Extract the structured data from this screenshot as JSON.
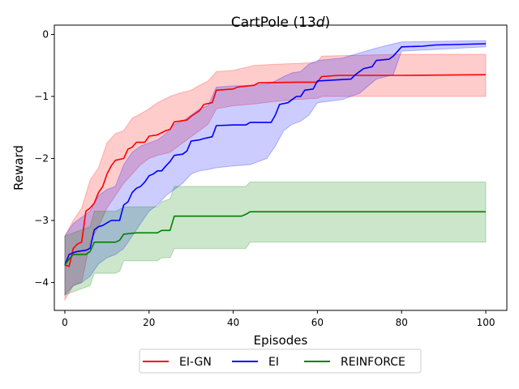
{
  "chart_data": {
    "type": "line",
    "title": "CartPole",
    "title_suffix": "13",
    "title_italic_part": "d",
    "title_close": ")",
    "title_open": " (",
    "xlabel": "Episodes",
    "ylabel": "Reward",
    "xlim": [
      -2.5,
      105
    ],
    "ylim": [
      -4.45,
      0.15
    ],
    "xticks": [
      0,
      20,
      40,
      60,
      80,
      100
    ],
    "yticks": [
      0,
      -1,
      -2,
      -3,
      -4
    ],
    "ytick_labels": [
      "0",
      "−1",
      "−2",
      "−3",
      "−4"
    ],
    "legend_position": "bottom-center",
    "series": [
      {
        "name": "EI-GN",
        "color": "#ff0000",
        "fill": "#ff0000",
        "mean": [
          [
            0,
            -3.72
          ],
          [
            1,
            -3.74
          ],
          [
            2,
            -3.45
          ],
          [
            3,
            -3.38
          ],
          [
            4,
            -3.35
          ],
          [
            5,
            -2.85
          ],
          [
            6,
            -2.8
          ],
          [
            7,
            -2.72
          ],
          [
            8,
            -2.55
          ],
          [
            9,
            -2.45
          ],
          [
            10,
            -2.25
          ],
          [
            11,
            -2.12
          ],
          [
            12,
            -2.03
          ],
          [
            14,
            -2.0
          ],
          [
            15,
            -1.85
          ],
          [
            16,
            -1.82
          ],
          [
            17,
            -1.74
          ],
          [
            19,
            -1.74
          ],
          [
            20,
            -1.64
          ],
          [
            22,
            -1.62
          ],
          [
            24,
            -1.55
          ],
          [
            25,
            -1.53
          ],
          [
            26,
            -1.41
          ],
          [
            29,
            -1.38
          ],
          [
            30,
            -1.32
          ],
          [
            32,
            -1.23
          ],
          [
            33,
            -1.13
          ],
          [
            35,
            -1.1
          ],
          [
            36,
            -0.9
          ],
          [
            40,
            -0.88
          ],
          [
            41,
            -0.85
          ],
          [
            45,
            -0.82
          ],
          [
            46,
            -0.78
          ],
          [
            55,
            -0.77
          ],
          [
            60,
            -0.77
          ],
          [
            61,
            -0.68
          ],
          [
            65,
            -0.66
          ],
          [
            80,
            -0.66
          ],
          [
            100,
            -0.65
          ]
        ],
        "lower": [
          [
            0,
            -4.28
          ],
          [
            2,
            -4.05
          ],
          [
            4,
            -4.0
          ],
          [
            6,
            -3.35
          ],
          [
            8,
            -3.1
          ],
          [
            10,
            -2.8
          ],
          [
            12,
            -2.6
          ],
          [
            14,
            -2.4
          ],
          [
            16,
            -2.25
          ],
          [
            18,
            -2.1
          ],
          [
            20,
            -2.0
          ],
          [
            22,
            -1.95
          ],
          [
            25,
            -1.9
          ],
          [
            27,
            -1.8
          ],
          [
            30,
            -1.65
          ],
          [
            32,
            -1.55
          ],
          [
            34,
            -1.45
          ],
          [
            36,
            -1.2
          ],
          [
            40,
            -1.15
          ],
          [
            45,
            -1.12
          ],
          [
            50,
            -1.08
          ],
          [
            55,
            -1.05
          ],
          [
            60,
            -1.03
          ],
          [
            61,
            -1.0
          ],
          [
            80,
            -1.0
          ],
          [
            100,
            -1.0
          ]
        ],
        "upper": [
          [
            0,
            -3.25
          ],
          [
            2,
            -3.0
          ],
          [
            4,
            -2.8
          ],
          [
            6,
            -2.35
          ],
          [
            8,
            -2.15
          ],
          [
            10,
            -1.75
          ],
          [
            12,
            -1.6
          ],
          [
            14,
            -1.55
          ],
          [
            16,
            -1.35
          ],
          [
            18,
            -1.28
          ],
          [
            20,
            -1.2
          ],
          [
            22,
            -1.1
          ],
          [
            25,
            -1.0
          ],
          [
            27,
            -0.95
          ],
          [
            30,
            -0.9
          ],
          [
            32,
            -0.82
          ],
          [
            34,
            -0.75
          ],
          [
            36,
            -0.6
          ],
          [
            40,
            -0.58
          ],
          [
            45,
            -0.5
          ],
          [
            50,
            -0.48
          ],
          [
            55,
            -0.47
          ],
          [
            60,
            -0.45
          ],
          [
            61,
            -0.35
          ],
          [
            80,
            -0.32
          ],
          [
            100,
            -0.32
          ]
        ]
      },
      {
        "name": "EI",
        "color": "#0000ff",
        "fill": "#0000ff",
        "mean": [
          [
            0,
            -3.72
          ],
          [
            1,
            -3.55
          ],
          [
            2,
            -3.52
          ],
          [
            3,
            -3.5
          ],
          [
            5,
            -3.48
          ],
          [
            6,
            -3.45
          ],
          [
            7,
            -3.15
          ],
          [
            8,
            -3.1
          ],
          [
            9,
            -3.08
          ],
          [
            10,
            -3.04
          ],
          [
            11,
            -3.0
          ],
          [
            13,
            -3.0
          ],
          [
            14,
            -2.75
          ],
          [
            15,
            -2.7
          ],
          [
            16,
            -2.55
          ],
          [
            17,
            -2.48
          ],
          [
            18,
            -2.45
          ],
          [
            19,
            -2.38
          ],
          [
            20,
            -2.28
          ],
          [
            21,
            -2.25
          ],
          [
            22,
            -2.2
          ],
          [
            23,
            -2.2
          ],
          [
            24,
            -2.12
          ],
          [
            25,
            -2.05
          ],
          [
            26,
            -1.95
          ],
          [
            28,
            -1.93
          ],
          [
            29,
            -1.88
          ],
          [
            30,
            -1.72
          ],
          [
            32,
            -1.7
          ],
          [
            33,
            -1.68
          ],
          [
            35,
            -1.65
          ],
          [
            36,
            -1.47
          ],
          [
            40,
            -1.46
          ],
          [
            43,
            -1.46
          ],
          [
            44,
            -1.42
          ],
          [
            49,
            -1.42
          ],
          [
            50,
            -1.3
          ],
          [
            51,
            -1.13
          ],
          [
            53,
            -1.1
          ],
          [
            54,
            -1.05
          ],
          [
            55,
            -1.0
          ],
          [
            56,
            -1.0
          ],
          [
            57,
            -0.9
          ],
          [
            59,
            -0.88
          ],
          [
            60,
            -0.75
          ],
          [
            68,
            -0.72
          ],
          [
            69,
            -0.65
          ],
          [
            71,
            -0.55
          ],
          [
            73,
            -0.52
          ],
          [
            74,
            -0.42
          ],
          [
            77,
            -0.4
          ],
          [
            78,
            -0.35
          ],
          [
            80,
            -0.2
          ],
          [
            85,
            -0.19
          ],
          [
            88,
            -0.17
          ],
          [
            100,
            -0.15
          ]
        ],
        "lower": [
          [
            0,
            -4.2
          ],
          [
            2,
            -4.05
          ],
          [
            4,
            -4.0
          ],
          [
            6,
            -3.9
          ],
          [
            8,
            -3.7
          ],
          [
            10,
            -3.6
          ],
          [
            12,
            -3.55
          ],
          [
            14,
            -3.45
          ],
          [
            16,
            -3.25
          ],
          [
            18,
            -3.05
          ],
          [
            20,
            -2.85
          ],
          [
            22,
            -2.75
          ],
          [
            24,
            -2.6
          ],
          [
            26,
            -2.5
          ],
          [
            28,
            -2.4
          ],
          [
            30,
            -2.25
          ],
          [
            32,
            -2.2
          ],
          [
            34,
            -2.18
          ],
          [
            36,
            -2.15
          ],
          [
            40,
            -2.12
          ],
          [
            44,
            -2.1
          ],
          [
            48,
            -2.0
          ],
          [
            50,
            -1.8
          ],
          [
            52,
            -1.55
          ],
          [
            54,
            -1.45
          ],
          [
            56,
            -1.4
          ],
          [
            58,
            -1.3
          ],
          [
            60,
            -1.1
          ],
          [
            66,
            -1.05
          ],
          [
            70,
            -0.95
          ],
          [
            74,
            -0.72
          ],
          [
            78,
            -0.65
          ],
          [
            80,
            -0.27
          ],
          [
            100,
            -0.2
          ]
        ],
        "upper": [
          [
            0,
            -3.25
          ],
          [
            2,
            -3.05
          ],
          [
            4,
            -2.95
          ],
          [
            6,
            -2.85
          ],
          [
            8,
            -2.6
          ],
          [
            10,
            -2.5
          ],
          [
            12,
            -2.45
          ],
          [
            14,
            -2.1
          ],
          [
            16,
            -1.9
          ],
          [
            18,
            -1.8
          ],
          [
            20,
            -1.75
          ],
          [
            22,
            -1.7
          ],
          [
            24,
            -1.6
          ],
          [
            26,
            -1.45
          ],
          [
            28,
            -1.4
          ],
          [
            30,
            -1.3
          ],
          [
            32,
            -1.2
          ],
          [
            34,
            -1.15
          ],
          [
            36,
            -0.85
          ],
          [
            40,
            -0.83
          ],
          [
            44,
            -0.82
          ],
          [
            48,
            -0.8
          ],
          [
            50,
            -0.75
          ],
          [
            52,
            -0.68
          ],
          [
            54,
            -0.62
          ],
          [
            56,
            -0.6
          ],
          [
            58,
            -0.48
          ],
          [
            60,
            -0.42
          ],
          [
            66,
            -0.38
          ],
          [
            70,
            -0.3
          ],
          [
            74,
            -0.22
          ],
          [
            78,
            -0.15
          ],
          [
            80,
            -0.12
          ],
          [
            100,
            -0.1
          ]
        ]
      },
      {
        "name": "REINFORCE",
        "color": "#008000",
        "fill": "#008000",
        "mean": [
          [
            0,
            -3.72
          ],
          [
            1,
            -3.62
          ],
          [
            2,
            -3.55
          ],
          [
            5,
            -3.55
          ],
          [
            6,
            -3.5
          ],
          [
            7,
            -3.35
          ],
          [
            12,
            -3.35
          ],
          [
            13,
            -3.32
          ],
          [
            14,
            -3.22
          ],
          [
            17,
            -3.2
          ],
          [
            22,
            -3.2
          ],
          [
            23,
            -3.16
          ],
          [
            25,
            -3.16
          ],
          [
            26,
            -2.93
          ],
          [
            42,
            -2.93
          ],
          [
            43,
            -2.9
          ],
          [
            44,
            -2.86
          ],
          [
            100,
            -2.86
          ]
        ],
        "lower": [
          [
            0,
            -4.2
          ],
          [
            2,
            -4.15
          ],
          [
            6,
            -4.05
          ],
          [
            7,
            -3.85
          ],
          [
            12,
            -3.85
          ],
          [
            13,
            -3.82
          ],
          [
            14,
            -3.65
          ],
          [
            22,
            -3.65
          ],
          [
            23,
            -3.6
          ],
          [
            25,
            -3.6
          ],
          [
            26,
            -3.45
          ],
          [
            43,
            -3.45
          ],
          [
            44,
            -3.35
          ],
          [
            100,
            -3.35
          ]
        ],
        "upper": [
          [
            0,
            -3.25
          ],
          [
            2,
            -3.2
          ],
          [
            6,
            -3.1
          ],
          [
            7,
            -2.85
          ],
          [
            12,
            -2.85
          ],
          [
            13,
            -2.82
          ],
          [
            14,
            -2.78
          ],
          [
            22,
            -2.78
          ],
          [
            23,
            -2.7
          ],
          [
            25,
            -2.65
          ],
          [
            26,
            -2.45
          ],
          [
            43,
            -2.45
          ],
          [
            44,
            -2.38
          ],
          [
            100,
            -2.38
          ]
        ]
      }
    ]
  }
}
